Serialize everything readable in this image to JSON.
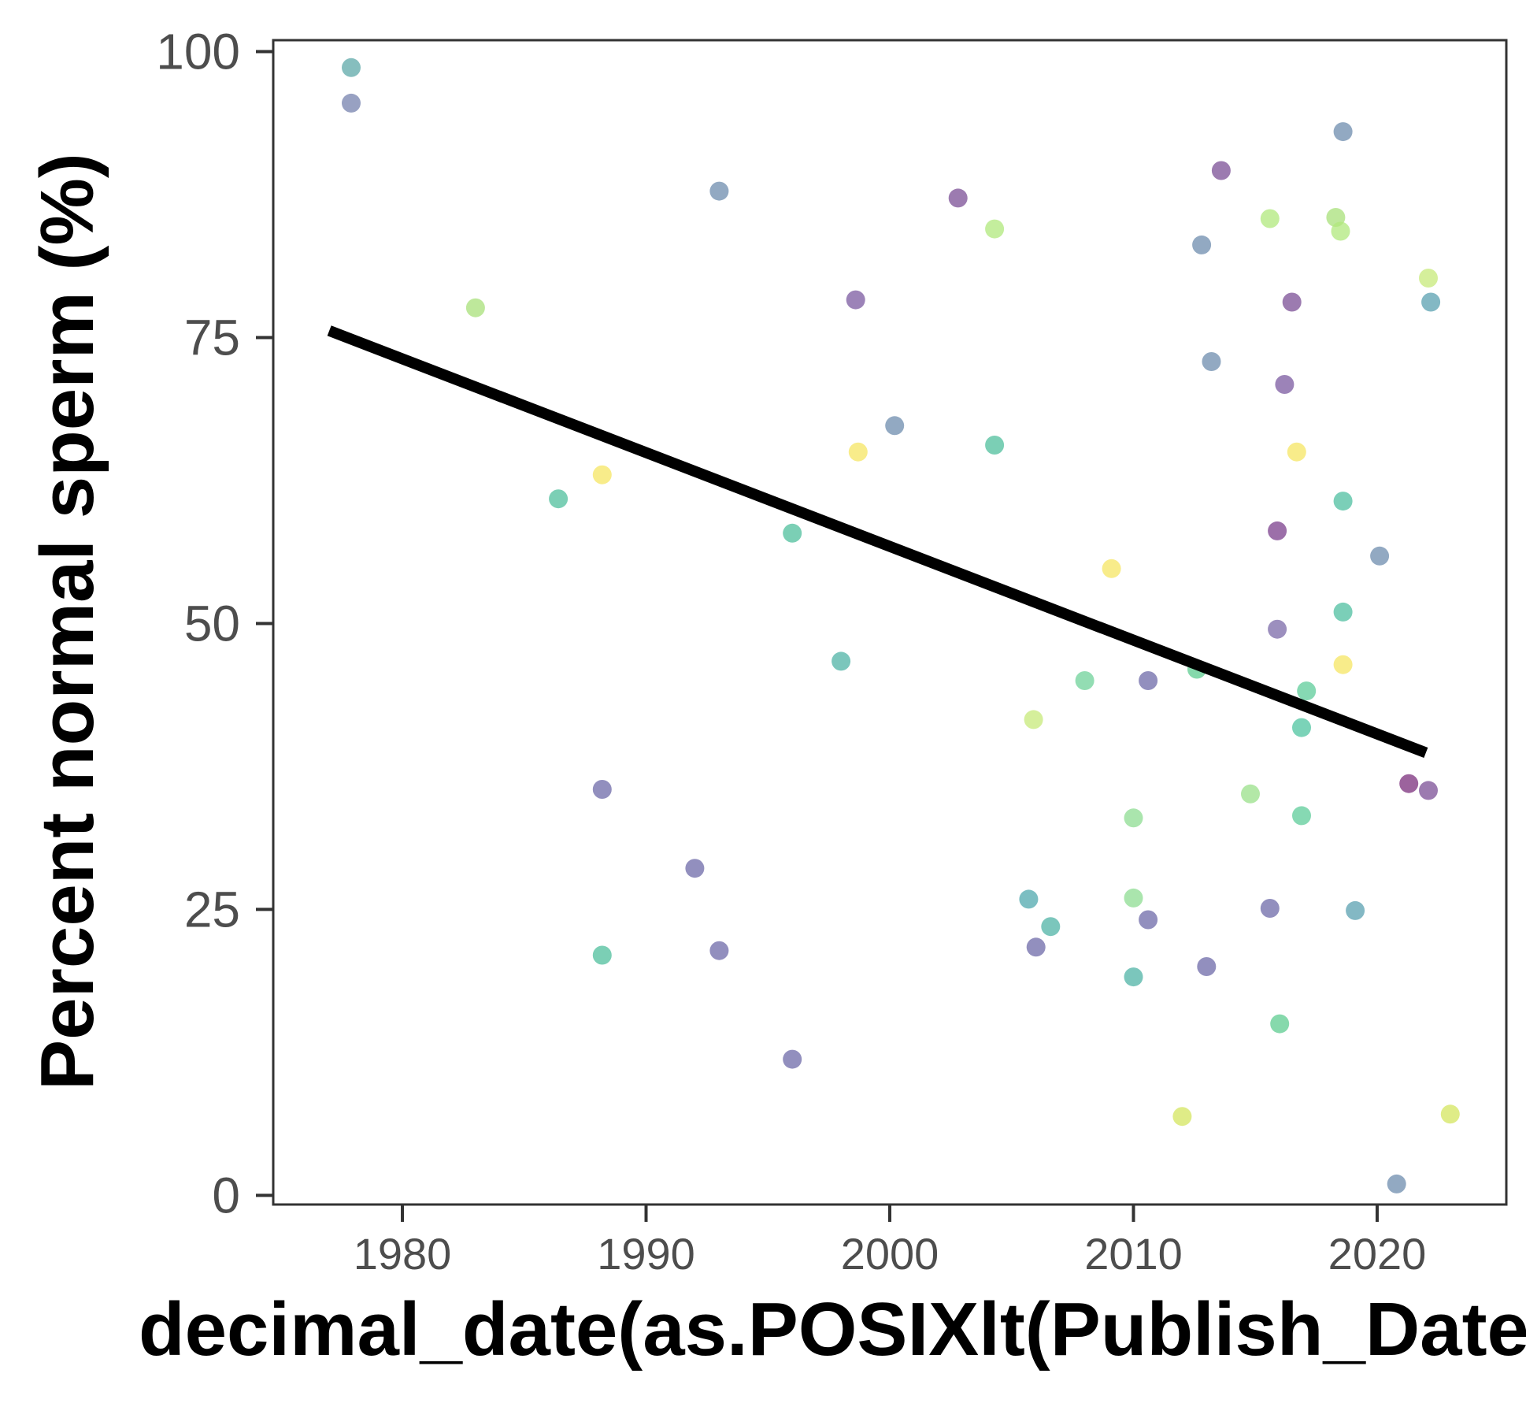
{
  "chart_data": {
    "type": "scatter",
    "xlabel": "decimal_date(as.POSIXlt(Publish_Date",
    "ylabel": "Percent normal sperm (%)",
    "xlim": [
      1974.7,
      2025.3
    ],
    "ylim": [
      -0.8,
      101.0
    ],
    "x_ticks": [
      1980,
      1990,
      2000,
      2010,
      2020
    ],
    "y_ticks": [
      0,
      25,
      50,
      75,
      100
    ],
    "x_tick_labels": [
      "1980",
      "1990",
      "2000",
      "2010",
      "2020"
    ],
    "y_tick_labels": [
      "0",
      "25",
      "50",
      "75",
      "100"
    ],
    "grid": false,
    "legend": "none",
    "trend_line": {
      "x": [
        1977.0,
        2022.0
      ],
      "y": [
        75.6,
        38.7
      ],
      "color": "#000000"
    },
    "points": [
      {
        "x": 1977.9,
        "y": 98.6,
        "color": "#5ea8a8"
      },
      {
        "x": 1977.9,
        "y": 95.5,
        "color": "#7682ad"
      },
      {
        "x": 1983.0,
        "y": 77.6,
        "color": "#a8e07a"
      },
      {
        "x": 1986.4,
        "y": 60.9,
        "color": "#4fbf9c"
      },
      {
        "x": 1988.2,
        "y": 63.0,
        "color": "#f5e663"
      },
      {
        "x": 1988.2,
        "y": 35.5,
        "color": "#6e6aa8"
      },
      {
        "x": 1988.2,
        "y": 21.0,
        "color": "#4fbf9c"
      },
      {
        "x": 1992.0,
        "y": 28.6,
        "color": "#6e6aa8"
      },
      {
        "x": 1993.0,
        "y": 87.8,
        "color": "#6e8cad"
      },
      {
        "x": 1993.0,
        "y": 21.4,
        "color": "#6e6aa8"
      },
      {
        "x": 1996.0,
        "y": 57.9,
        "color": "#4fbf9c"
      },
      {
        "x": 1996.0,
        "y": 11.9,
        "color": "#6e6aa8"
      },
      {
        "x": 1998.0,
        "y": 46.7,
        "color": "#4fb3a6"
      },
      {
        "x": 1998.6,
        "y": 78.3,
        "color": "#7b5aa0"
      },
      {
        "x": 1998.7,
        "y": 65.0,
        "color": "#f5e663"
      },
      {
        "x": 2000.2,
        "y": 67.3,
        "color": "#6e8cad"
      },
      {
        "x": 2002.8,
        "y": 87.2,
        "color": "#7b4f96"
      },
      {
        "x": 2004.3,
        "y": 84.5,
        "color": "#b0e87c"
      },
      {
        "x": 2004.3,
        "y": 65.6,
        "color": "#4fbf9c"
      },
      {
        "x": 2005.7,
        "y": 25.9,
        "color": "#4fa8ad"
      },
      {
        "x": 2005.9,
        "y": 41.6,
        "color": "#c7ea7a"
      },
      {
        "x": 2006.0,
        "y": 21.7,
        "color": "#6e6aa8"
      },
      {
        "x": 2006.6,
        "y": 23.5,
        "color": "#4fb3a6"
      },
      {
        "x": 2008.0,
        "y": 45.0,
        "color": "#6fd29a"
      },
      {
        "x": 2009.1,
        "y": 54.8,
        "color": "#f5e663"
      },
      {
        "x": 2010.0,
        "y": 33.0,
        "color": "#8ddc92"
      },
      {
        "x": 2010.0,
        "y": 26.0,
        "color": "#8ddc92"
      },
      {
        "x": 2010.0,
        "y": 19.1,
        "color": "#4fb3a6"
      },
      {
        "x": 2010.6,
        "y": 45.0,
        "color": "#6e6aa8"
      },
      {
        "x": 2010.6,
        "y": 24.1,
        "color": "#6e6aa8"
      },
      {
        "x": 2012.0,
        "y": 6.9,
        "color": "#d4e65f"
      },
      {
        "x": 2012.6,
        "y": 46.0,
        "color": "#5dcc90"
      },
      {
        "x": 2012.8,
        "y": 83.1,
        "color": "#6e8cad"
      },
      {
        "x": 2013.0,
        "y": 20.0,
        "color": "#6e6aa8"
      },
      {
        "x": 2013.2,
        "y": 72.9,
        "color": "#6e8cad"
      },
      {
        "x": 2013.6,
        "y": 89.6,
        "color": "#7b4f96"
      },
      {
        "x": 2014.8,
        "y": 35.1,
        "color": "#9ae08a"
      },
      {
        "x": 2015.6,
        "y": 85.4,
        "color": "#b0e87c"
      },
      {
        "x": 2015.6,
        "y": 25.1,
        "color": "#6e6aa8"
      },
      {
        "x": 2015.9,
        "y": 58.1,
        "color": "#7b3f8c"
      },
      {
        "x": 2015.9,
        "y": 49.5,
        "color": "#7b6aa8"
      },
      {
        "x": 2016.0,
        "y": 15.0,
        "color": "#5dcc90"
      },
      {
        "x": 2016.2,
        "y": 70.9,
        "color": "#7b5aa0"
      },
      {
        "x": 2016.5,
        "y": 78.1,
        "color": "#7b4f96"
      },
      {
        "x": 2016.7,
        "y": 65.0,
        "color": "#f5e663"
      },
      {
        "x": 2016.9,
        "y": 40.9,
        "color": "#4fc4a0"
      },
      {
        "x": 2016.9,
        "y": 33.2,
        "color": "#5dcc9a"
      },
      {
        "x": 2017.1,
        "y": 44.1,
        "color": "#5dcc9a"
      },
      {
        "x": 2018.3,
        "y": 85.5,
        "color": "#a8e07a"
      },
      {
        "x": 2018.5,
        "y": 84.3,
        "color": "#b0e87c"
      },
      {
        "x": 2018.6,
        "y": 93.0,
        "color": "#6e8cad"
      },
      {
        "x": 2018.6,
        "y": 60.7,
        "color": "#4fbfa0"
      },
      {
        "x": 2018.6,
        "y": 51.0,
        "color": "#4fbfa0"
      },
      {
        "x": 2018.6,
        "y": 46.4,
        "color": "#f5e663"
      },
      {
        "x": 2019.1,
        "y": 24.9,
        "color": "#5aa0b0"
      },
      {
        "x": 2020.1,
        "y": 55.9,
        "color": "#6e8cad"
      },
      {
        "x": 2020.8,
        "y": 1.0,
        "color": "#6e8cad"
      },
      {
        "x": 2021.3,
        "y": 36.0,
        "color": "#7b2f7c"
      },
      {
        "x": 2022.1,
        "y": 80.2,
        "color": "#c7ea7a"
      },
      {
        "x": 2022.1,
        "y": 35.4,
        "color": "#7b4f96"
      },
      {
        "x": 2022.2,
        "y": 78.1,
        "color": "#5aa0b0"
      },
      {
        "x": 2023.0,
        "y": 7.1,
        "color": "#d4e65f"
      }
    ]
  }
}
